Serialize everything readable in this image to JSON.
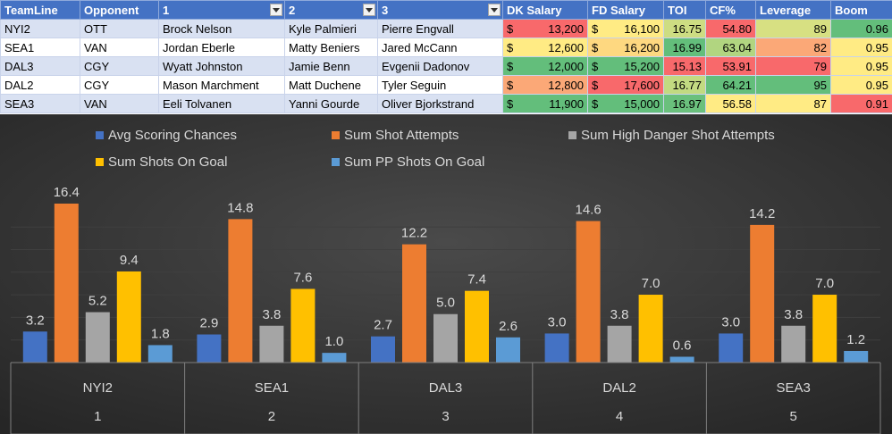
{
  "table": {
    "headers": [
      "TeamLine",
      "Opponent",
      "1",
      "2",
      "3",
      "DK Salary",
      "FD Salary",
      "TOI",
      "CF%",
      "Leverage",
      "Boom"
    ],
    "filter_columns": [
      2,
      3,
      4
    ],
    "rows": [
      {
        "teamline": "NYI2",
        "opponent": "OTT",
        "p1": "Brock Nelson",
        "p2": "Kyle Palmieri",
        "p3": "Pierre Engvall",
        "dk": "13,200",
        "fd": "16,100",
        "toi": "16.75",
        "cf": "54.80",
        "leverage": "89",
        "boom": "0.96"
      },
      {
        "teamline": "SEA1",
        "opponent": "VAN",
        "p1": "Jordan Eberle",
        "p2": "Matty Beniers",
        "p3": "Jared McCann",
        "dk": "12,600",
        "fd": "16,200",
        "toi": "16.99",
        "cf": "63.04",
        "leverage": "82",
        "boom": "0.95"
      },
      {
        "teamline": "DAL3",
        "opponent": "CGY",
        "p1": "Wyatt Johnston",
        "p2": "Jamie Benn",
        "p3": "Evgenii Dadonov",
        "dk": "12,000",
        "fd": "15,200",
        "toi": "15.13",
        "cf": "53.91",
        "leverage": "79",
        "boom": "0.95"
      },
      {
        "teamline": "DAL2",
        "opponent": "CGY",
        "p1": "Mason Marchment",
        "p2": "Matt Duchene",
        "p3": "Tyler Seguin",
        "dk": "12,800",
        "fd": "17,600",
        "toi": "16.77",
        "cf": "64.21",
        "leverage": "95",
        "boom": "0.95"
      },
      {
        "teamline": "SEA3",
        "opponent": "VAN",
        "p1": "Eeli Tolvanen",
        "p2": "Yanni Gourde",
        "p3": "Oliver Bjorkstrand",
        "dk": "11,900",
        "fd": "15,000",
        "toi": "16.97",
        "cf": "56.58",
        "leverage": "87",
        "boom": "0.91"
      }
    ],
    "currency_symbol": "$",
    "cell_colors": {
      "dk": [
        "#f8696b",
        "#ffeb84",
        "#63be7b",
        "#fba877",
        "#63be7b"
      ],
      "fd": [
        "#ffeb84",
        "#fed880",
        "#63be7b",
        "#f8696b",
        "#63be7b"
      ],
      "toi": [
        "#cddd82",
        "#63be7b",
        "#f8696b",
        "#c2da81",
        "#6ac07c"
      ],
      "cf": [
        "#f8696b",
        "#b1d580",
        "#f8696b",
        "#63be7b",
        "#ffeb84"
      ],
      "leverage": [
        "#d7e082",
        "#fba877",
        "#f8696b",
        "#63be7b",
        "#ffeb84"
      ],
      "boom": [
        "#63be7b",
        "#ffeb84",
        "#ffeb84",
        "#ffeb84",
        "#f8696b"
      ]
    }
  },
  "chart_data": {
    "type": "bar",
    "categories": [
      "NYI2",
      "SEA1",
      "DAL3",
      "DAL2",
      "SEA3"
    ],
    "sub_categories": [
      "1",
      "2",
      "3",
      "4",
      "5"
    ],
    "series": [
      {
        "name": "Avg Scoring Chances",
        "values": [
          3.2,
          2.9,
          2.7,
          3.0,
          3.0
        ],
        "color": "#4472c4"
      },
      {
        "name": "Sum Shot Attempts",
        "values": [
          16.4,
          14.8,
          12.2,
          14.6,
          14.2
        ],
        "color": "#ed7d31"
      },
      {
        "name": "Sum High Danger Shot Attempts",
        "values": [
          5.2,
          3.8,
          5.0,
          3.8,
          3.8
        ],
        "color": "#a5a5a5"
      },
      {
        "name": "Sum Shots On Goal",
        "values": [
          9.4,
          7.6,
          7.4,
          7.0,
          7.0
        ],
        "color": "#ffc000"
      },
      {
        "name": "Sum PP Shots On Goal",
        "values": [
          1.8,
          1.0,
          2.6,
          0.6,
          1.2
        ],
        "color": "#5b9bd5"
      }
    ],
    "ylim": [
      0,
      16.4
    ],
    "grid": true,
    "legend_position": "top",
    "background": "#2b2b2b"
  }
}
